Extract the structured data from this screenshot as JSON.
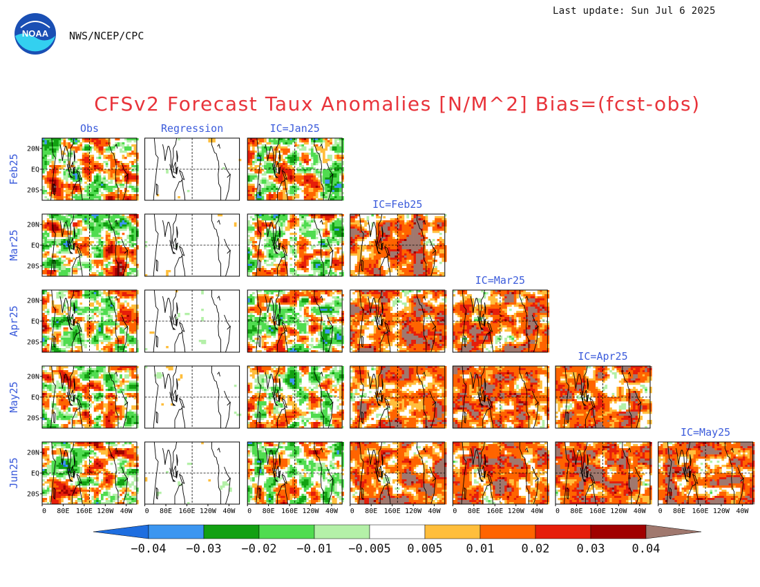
{
  "header": {
    "logo_text": "NOAA",
    "agency": "NWS/NCEP/CPC",
    "last_update": "Last update: Sun Jul 6 2025"
  },
  "chart_data": {
    "type": "heatmap",
    "title": "CFSv2 Forecast Taux Anomalies [N/M^2] Bias=(fcst-obs)",
    "column_headers": [
      "Obs",
      "Regression",
      "IC=Jan25",
      "IC=Feb25",
      "IC=Mar25",
      "IC=Apr25",
      "IC=May25"
    ],
    "row_labels": [
      "Feb25",
      "Mar25",
      "Apr25",
      "May25",
      "Jun25"
    ],
    "y_ticks": [
      "20N",
      "EQ",
      "20S"
    ],
    "x_ticks": [
      "0",
      "80E",
      "160E",
      "120W",
      "40W"
    ],
    "panels_per_row": [
      3,
      4,
      5,
      6,
      7
    ],
    "domain": {
      "lon": [
        0,
        360
      ],
      "lat": [
        -30,
        30
      ]
    },
    "colorbar": {
      "levels": [
        "−0.04",
        "−0.03",
        "−0.02",
        "−0.01",
        "−0.005",
        "0.005",
        "0.01",
        "0.02",
        "0.03",
        "0.04"
      ],
      "colors": [
        "#1e6ee0",
        "#3c96f0",
        "#12a012",
        "#50dc50",
        "#b4f0a8",
        "#ffffff",
        "#ffbe3c",
        "#ff6400",
        "#e61e0a",
        "#a00000",
        "#a0786e"
      ],
      "extend": "both"
    },
    "panel_fill": {
      "Obs": "mixed",
      "Regression": "mostly white",
      "IC=Jan25": "mixed",
      "IC=Feb25": "mostly positive",
      "IC=Mar25": "mostly positive",
      "IC=Apr25": "mostly positive",
      "IC=May25": "mostly positive"
    }
  }
}
